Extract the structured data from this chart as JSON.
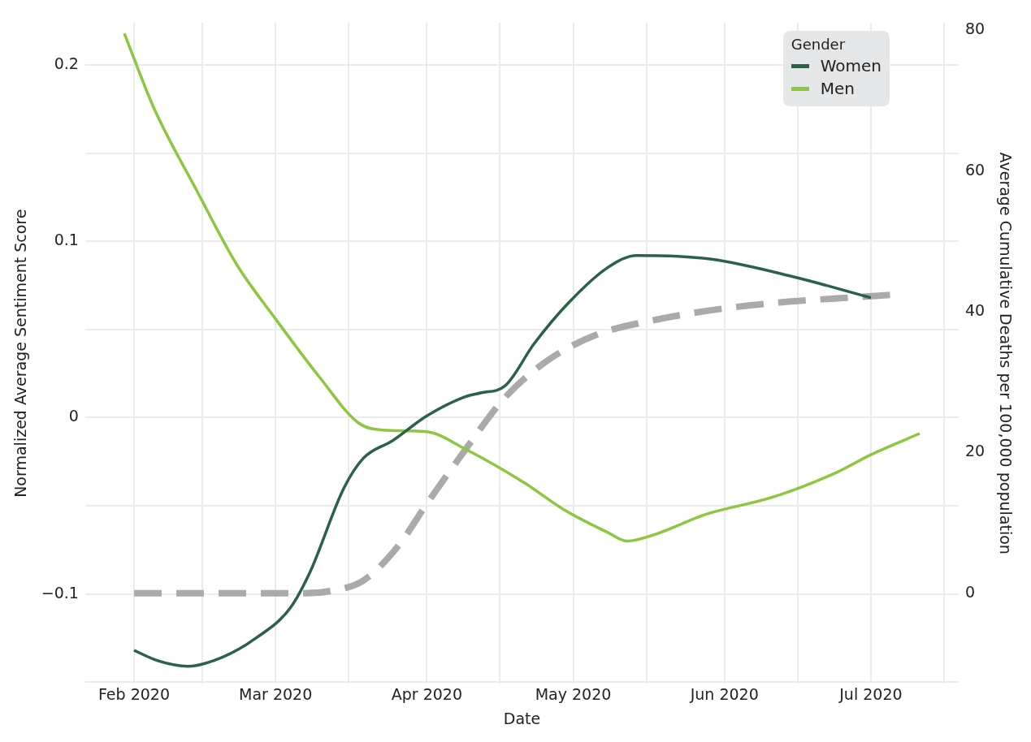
{
  "chart_data": {
    "type": "line",
    "xlabel": "Date",
    "ylabel": "Normalized Average Sentiment Score",
    "y2label": "Average Cumulative Deaths per 100,000 population",
    "legend_title": "Gender",
    "legend": "top right",
    "grid": true,
    "marker": "none",
    "xlim": [
      "2020-01-22",
      "2020-07-19"
    ],
    "xticks": [
      {
        "value": "2020-02-01",
        "label": "Feb 2020"
      },
      {
        "value": "2020-02-15",
        "label": null
      },
      {
        "value": "2020-03-01",
        "label": "Mar 2020"
      },
      {
        "value": "2020-03-16",
        "label": null
      },
      {
        "value": "2020-04-01",
        "label": "Apr 2020"
      },
      {
        "value": "2020-04-16",
        "label": null
      },
      {
        "value": "2020-05-01",
        "label": "May 2020"
      },
      {
        "value": "2020-05-16",
        "label": null
      },
      {
        "value": "2020-06-01",
        "label": "Jun 2020"
      },
      {
        "value": "2020-06-16",
        "label": null
      },
      {
        "value": "2020-07-01",
        "label": "Jul 2020"
      },
      {
        "value": "2020-07-16",
        "label": null
      }
    ],
    "ylim": [
      -0.151,
      0.224
    ],
    "yticks": [
      {
        "value": -0.15,
        "label": null
      },
      {
        "value": -0.1,
        "label": "−0.1"
      },
      {
        "value": -0.05,
        "label": null
      },
      0,
      {
        "value": 0.05,
        "label": null
      },
      0.1,
      {
        "value": 0.15,
        "label": null
      },
      0.2
    ],
    "y2lim": [
      -12.9,
      81.1
    ],
    "y2ticks": [
      0,
      20,
      40,
      60,
      80
    ],
    "series": [
      {
        "name": "Women",
        "color": "#2b6147",
        "line_style": "solid",
        "x": [
          "2020-02-01",
          "2020-02-06",
          "2020-02-12",
          "2020-02-19",
          "2020-02-26",
          "2020-03-04",
          "2020-03-08",
          "2020-03-15",
          "2020-03-19",
          "2020-03-25",
          "2020-04-01",
          "2020-04-09",
          "2020-04-12",
          "2020-04-17",
          "2020-04-23",
          "2020-04-30",
          "2020-05-08",
          "2020-05-14",
          "2020-05-29",
          "2020-06-15",
          "2020-07-01"
        ],
        "values": [
          -0.132,
          -0.138,
          -0.141,
          -0.136,
          -0.125,
          -0.108,
          -0.088,
          -0.04,
          -0.023,
          -0.013,
          0.001,
          0.012,
          0.014,
          0.018,
          0.042,
          0.065,
          0.085,
          0.092,
          0.09,
          0.08,
          0.068
        ]
      },
      {
        "name": "Men",
        "color": "#8dc63f",
        "line_style": "solid",
        "x": [
          "2020-01-30",
          "2020-02-05",
          "2020-02-14",
          "2020-02-22",
          "2020-03-01",
          "2020-03-10",
          "2020-03-18",
          "2020-03-23",
          "2020-04-01",
          "2020-04-09",
          "2020-04-21",
          "2020-04-29",
          "2020-05-08",
          "2020-05-12",
          "2020-05-18",
          "2020-05-28",
          "2020-06-11",
          "2020-06-24",
          "2020-07-01",
          "2020-07-11"
        ],
        "values": [
          0.218,
          0.176,
          0.128,
          0.087,
          0.056,
          0.023,
          -0.003,
          -0.007,
          -0.008,
          -0.018,
          -0.037,
          -0.052,
          -0.065,
          -0.07,
          -0.066,
          -0.055,
          -0.045,
          -0.031,
          -0.021,
          -0.009
        ]
      },
      {
        "color": "#aaaaaa",
        "axis": "y2",
        "line_style": "dashed",
        "x": [
          "2020-02-01",
          "2020-03-07",
          "2020-03-13",
          "2020-03-19",
          "2020-03-26",
          "2020-04-01",
          "2020-04-09",
          "2020-04-17",
          "2020-04-26",
          "2020-05-06",
          "2020-05-16",
          "2020-05-29",
          "2020-06-12",
          "2020-06-26",
          "2020-07-05"
        ],
        "values": [
          0,
          0,
          0.4,
          1.8,
          6.6,
          12.7,
          20.5,
          27.8,
          33.2,
          36.8,
          38.6,
          40.2,
          41.3,
          42.0,
          42.4
        ]
      }
    ]
  }
}
